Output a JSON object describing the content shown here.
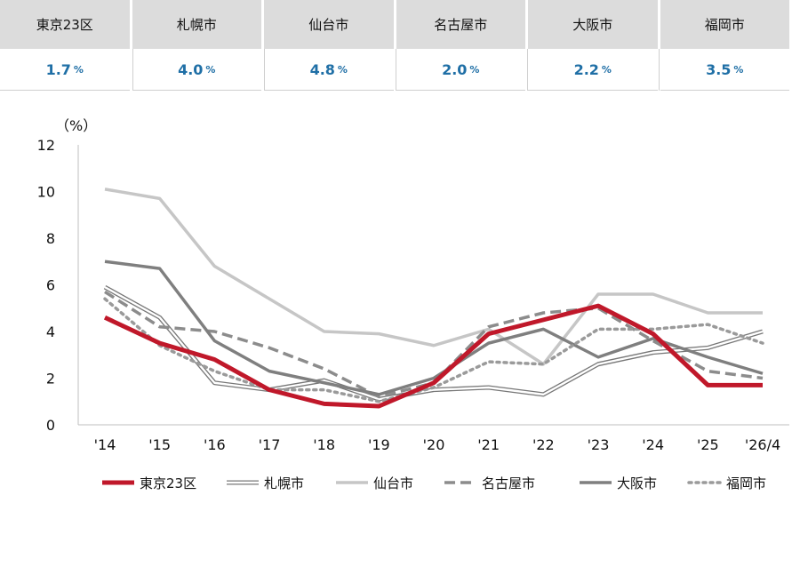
{
  "summary": {
    "cities": [
      "東京23区",
      "札幌市",
      "仙台市",
      "名古屋市",
      "大阪市",
      "福岡市"
    ],
    "values": [
      "1.7",
      "4.0",
      "4.8",
      "2.0",
      "2.2",
      "3.5"
    ],
    "unit": "%"
  },
  "chart_data": {
    "type": "line",
    "ylabel": "（%）",
    "ylim": [
      0,
      12
    ],
    "yticks": [
      "0",
      "2",
      "4",
      "6",
      "8",
      "10",
      "12"
    ],
    "categories": [
      "'14",
      "'15",
      "'16",
      "'17",
      "'18",
      "'19",
      "'20",
      "'21",
      "'22",
      "'23",
      "'24",
      "'25",
      "'26/4"
    ],
    "grid": false,
    "legend": "bottom",
    "series": [
      {
        "name": "東京23区",
        "color": "#c0182a",
        "style": "thick",
        "values": [
          4.6,
          3.5,
          2.8,
          1.5,
          0.9,
          0.8,
          1.8,
          3.9,
          4.5,
          5.1,
          3.9,
          1.7,
          1.7
        ]
      },
      {
        "name": "札幌市",
        "color": "#777777",
        "style": "double",
        "values": [
          5.9,
          4.6,
          1.8,
          1.5,
          1.9,
          1.1,
          1.5,
          1.6,
          1.3,
          2.6,
          3.1,
          3.3,
          4.0
        ]
      },
      {
        "name": "仙台市",
        "color": "#c6c6c6",
        "style": "light",
        "values": [
          10.1,
          9.7,
          6.8,
          5.4,
          4.0,
          3.9,
          3.4,
          4.1,
          2.6,
          5.6,
          5.6,
          4.8,
          4.8
        ]
      },
      {
        "name": "名古屋市",
        "color": "#8c8c8c",
        "style": "dashed",
        "values": [
          5.7,
          4.2,
          4.0,
          3.3,
          2.4,
          1.2,
          1.8,
          4.2,
          4.8,
          5.0,
          3.6,
          2.3,
          2.0
        ]
      },
      {
        "name": "大阪市",
        "color": "#7f7f7f",
        "style": "solid",
        "values": [
          7.0,
          6.7,
          3.6,
          2.3,
          1.8,
          1.3,
          2.0,
          3.5,
          4.1,
          2.9,
          3.7,
          2.9,
          2.2
        ]
      },
      {
        "name": "福岡市",
        "color": "#9a9a9a",
        "style": "dotted",
        "values": [
          5.4,
          3.4,
          2.3,
          1.5,
          1.5,
          1.0,
          1.6,
          2.7,
          2.6,
          4.1,
          4.1,
          4.3,
          3.5
        ]
      }
    ]
  }
}
